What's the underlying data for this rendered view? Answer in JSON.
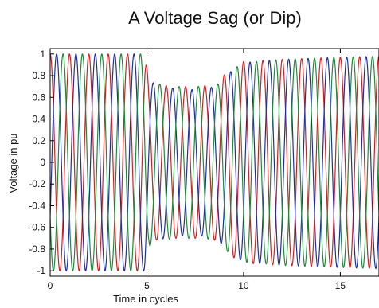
{
  "chart_data": {
    "type": "line",
    "title": "A Voltage Sag (or Dip)",
    "xlabel": "Time in cycles",
    "ylabel": "Voltage in pu",
    "xlim": [
      0,
      17
    ],
    "ylim": [
      -1.05,
      1.05
    ],
    "x_ticks": [
      0,
      5,
      10,
      15
    ],
    "x_tick_labels": [
      "0",
      "5",
      "10",
      "15"
    ],
    "y_ticks": [
      1,
      0.8,
      0.6,
      0.4,
      0.2,
      0,
      -0.2,
      -0.4,
      -0.6,
      -0.8,
      -1
    ],
    "y_tick_labels": [
      "1",
      "0.8",
      "0.6",
      "0.4",
      "0.2",
      "0",
      "-0.2",
      "-0.4",
      "-0.6",
      "-0.8",
      "-1"
    ],
    "grid": false,
    "legend": "none",
    "series": [
      {
        "color": "#d62020",
        "phase_deg": 90,
        "envelope": [
          [
            0,
            1.0
          ],
          [
            4.9,
            1.0
          ],
          [
            5.1,
            0.75
          ],
          [
            5.3,
            0.72
          ],
          [
            6.5,
            0.7
          ],
          [
            7.5,
            0.7
          ],
          [
            8.6,
            0.72
          ],
          [
            9.2,
            0.85
          ],
          [
            10.0,
            0.93
          ],
          [
            12.0,
            0.95
          ],
          [
            15.0,
            0.97
          ],
          [
            17.0,
            0.98
          ]
        ]
      },
      {
        "color": "#2030a0",
        "phase_deg": -30,
        "envelope": [
          [
            0,
            1.0
          ],
          [
            4.9,
            1.0
          ],
          [
            5.1,
            0.78
          ],
          [
            5.4,
            0.72
          ],
          [
            6.5,
            0.68
          ],
          [
            7.5,
            0.67
          ],
          [
            8.6,
            0.7
          ],
          [
            9.2,
            0.82
          ],
          [
            10.0,
            0.92
          ],
          [
            12.0,
            0.95
          ],
          [
            15.0,
            0.97
          ],
          [
            17.0,
            0.98
          ]
        ]
      },
      {
        "color": "#208a3a",
        "phase_deg": 210,
        "envelope": [
          [
            0,
            1.0
          ],
          [
            4.9,
            1.0
          ],
          [
            5.1,
            0.78
          ],
          [
            5.4,
            0.73
          ],
          [
            6.5,
            0.7
          ],
          [
            7.5,
            0.7
          ],
          [
            8.6,
            0.71
          ],
          [
            9.2,
            0.83
          ],
          [
            10.0,
            0.92
          ],
          [
            12.0,
            0.95
          ],
          [
            15.0,
            0.97
          ],
          [
            17.0,
            0.98
          ]
        ]
      }
    ]
  }
}
